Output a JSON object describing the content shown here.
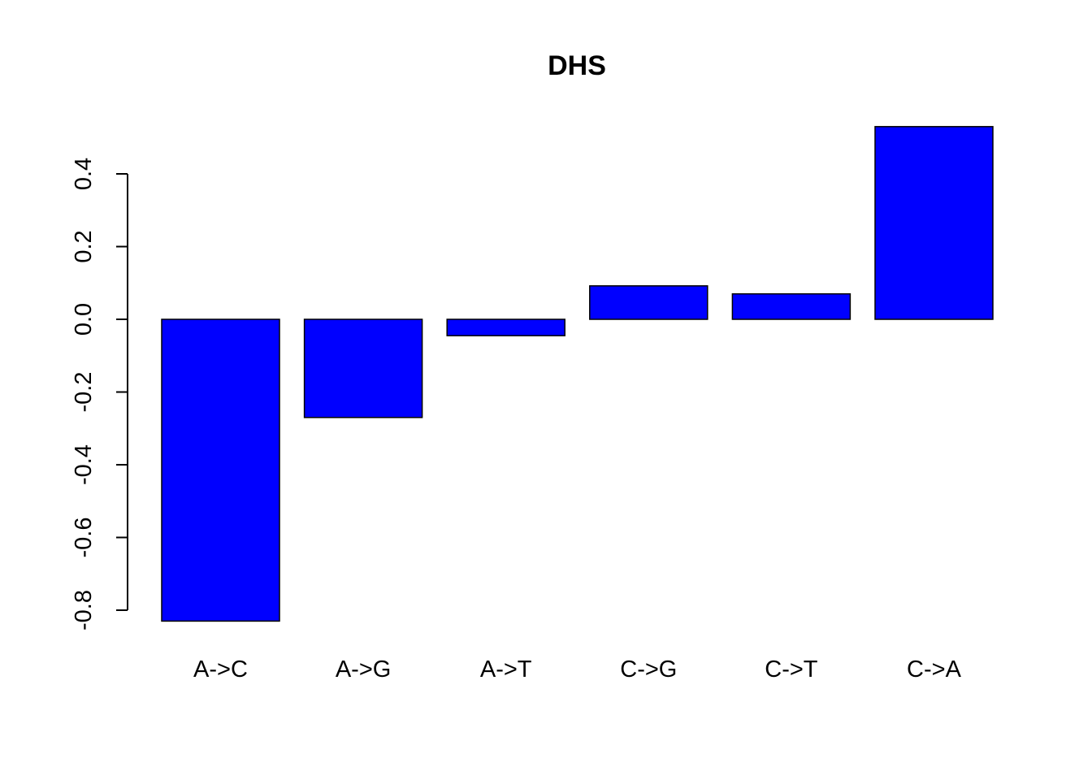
{
  "chart_data": {
    "type": "bar",
    "title": "DHS",
    "xlabel": "",
    "ylabel": "",
    "categories": [
      "A->C",
      "A->G",
      "A->T",
      "C->G",
      "C->T",
      "C->A"
    ],
    "values": [
      -0.83,
      -0.27,
      -0.045,
      0.092,
      0.07,
      0.53
    ],
    "yticks": [
      -0.8,
      -0.6,
      -0.4,
      -0.2,
      0.0,
      0.2,
      0.4
    ],
    "ytick_labels": [
      "-0.8",
      "-0.6",
      "-0.4",
      "-0.2",
      "0.0",
      "0.2",
      "0.4"
    ],
    "ylim": [
      -0.83,
      0.53
    ],
    "bar_color": "#0000ff",
    "border_color": "#000000",
    "grid": false,
    "legend": "none"
  }
}
